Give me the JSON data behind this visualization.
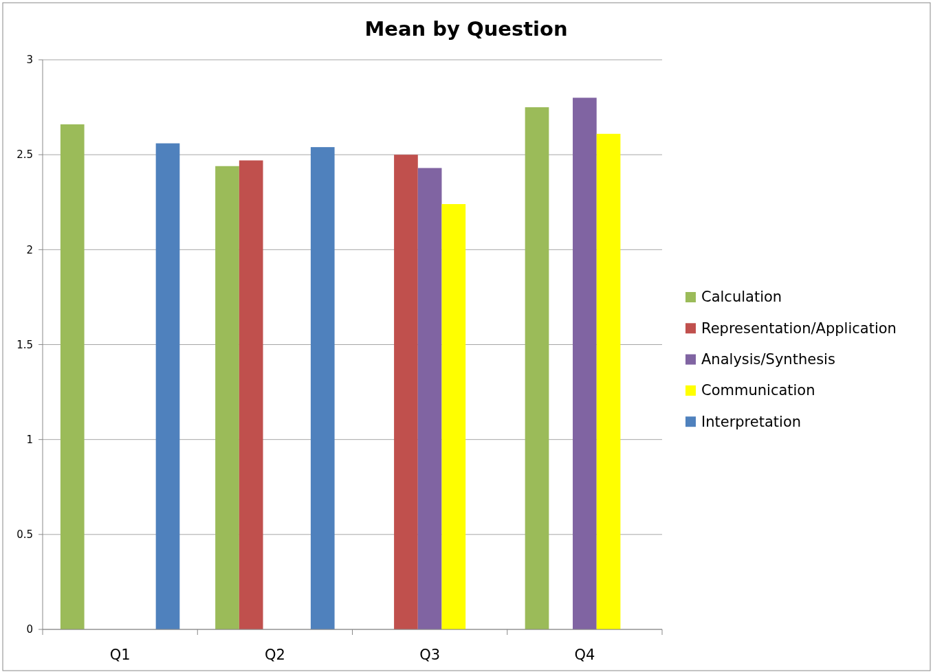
{
  "chart_data": {
    "type": "bar",
    "title": "Mean by Question",
    "categories": [
      "Q1",
      "Q2",
      "Q3",
      "Q4"
    ],
    "series": [
      {
        "name": "Calculation",
        "color": "#9bbb59",
        "values": [
          2.66,
          2.44,
          null,
          2.75
        ]
      },
      {
        "name": "Representation/Application",
        "color": "#c0504d",
        "values": [
          null,
          2.47,
          2.5,
          null
        ]
      },
      {
        "name": "Analysis/Synthesis",
        "color": "#8064a2",
        "values": [
          null,
          null,
          2.43,
          2.8
        ]
      },
      {
        "name": "Communication",
        "color": "#ffff00",
        "values": [
          null,
          null,
          2.24,
          2.61
        ]
      },
      {
        "name": "Interpretation",
        "color": "#4f81bd",
        "values": [
          2.56,
          2.54,
          null,
          null
        ]
      }
    ],
    "ylim": [
      0,
      3
    ],
    "yticks": [
      0,
      0.5,
      1,
      1.5,
      2,
      2.5,
      3
    ],
    "grid": "y",
    "legend": "right"
  }
}
